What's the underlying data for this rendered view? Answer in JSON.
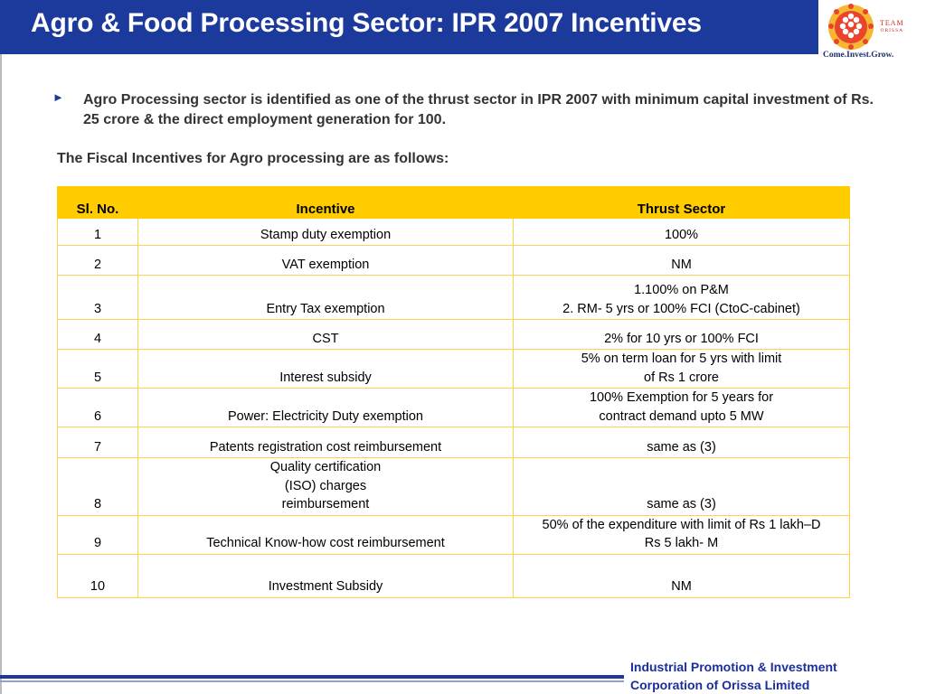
{
  "header": {
    "title": "Agro & Food Processing Sector: IPR 2007 Incentives"
  },
  "logo": {
    "brand_line1": "TEAM",
    "brand_line2": "ORISSA",
    "tagline": "Come.Invest.Grow."
  },
  "content": {
    "bullet_symbol": "►",
    "bullet_text": "Agro Processing sector is identified as one of the thrust sector in IPR 2007 with minimum capital investment of Rs. 25 crore & the direct employment generation for 100.",
    "intro": "The Fiscal Incentives for Agro processing are as follows:"
  },
  "table": {
    "headers": [
      "Sl. No.",
      "Incentive",
      "Thrust Sector"
    ],
    "rows": [
      {
        "no": "1",
        "incentive": [
          "Stamp duty exemption"
        ],
        "sector": [
          "100%"
        ]
      },
      {
        "no": "2",
        "incentive": [
          "VAT exemption"
        ],
        "sector": [
          "NM"
        ]
      },
      {
        "no": "3",
        "incentive": [
          "Entry Tax exemption"
        ],
        "sector": [
          "1.100% on P&M",
          "2. RM- 5 yrs or 100% FCI (CtoC-cabinet)"
        ]
      },
      {
        "no": "4",
        "incentive": [
          "CST"
        ],
        "sector": [
          "2% for 10 yrs or 100% FCI"
        ]
      },
      {
        "no": "5",
        "incentive": [
          "Interest subsidy"
        ],
        "sector": [
          "5% on term loan for 5 yrs with limit",
          "of Rs 1 crore"
        ]
      },
      {
        "no": "6",
        "incentive": [
          "Power: Electricity Duty exemption"
        ],
        "sector": [
          "100% Exemption for 5 years for",
          "contract demand upto 5 MW"
        ]
      },
      {
        "no": "7",
        "incentive": [
          "Patents registration cost reimbursement"
        ],
        "sector": [
          "same as (3)"
        ]
      },
      {
        "no": "8",
        "incentive": [
          "Quality certification",
          "(ISO) charges",
          "reimbursement"
        ],
        "sector": [
          "same as (3)"
        ]
      },
      {
        "no": "9",
        "incentive": [
          "Technical Know-how cost reimbursement"
        ],
        "sector": [
          "50% of the expenditure with limit of Rs 1 lakh–D",
          "Rs 5 lakh- M"
        ]
      },
      {
        "no": "10",
        "incentive": [
          "Investment Subsidy"
        ],
        "sector": [
          "NM"
        ]
      }
    ]
  },
  "footer": {
    "line1": "Industrial Promotion & Investment",
    "line2": "Corporation of Orissa Limited"
  }
}
